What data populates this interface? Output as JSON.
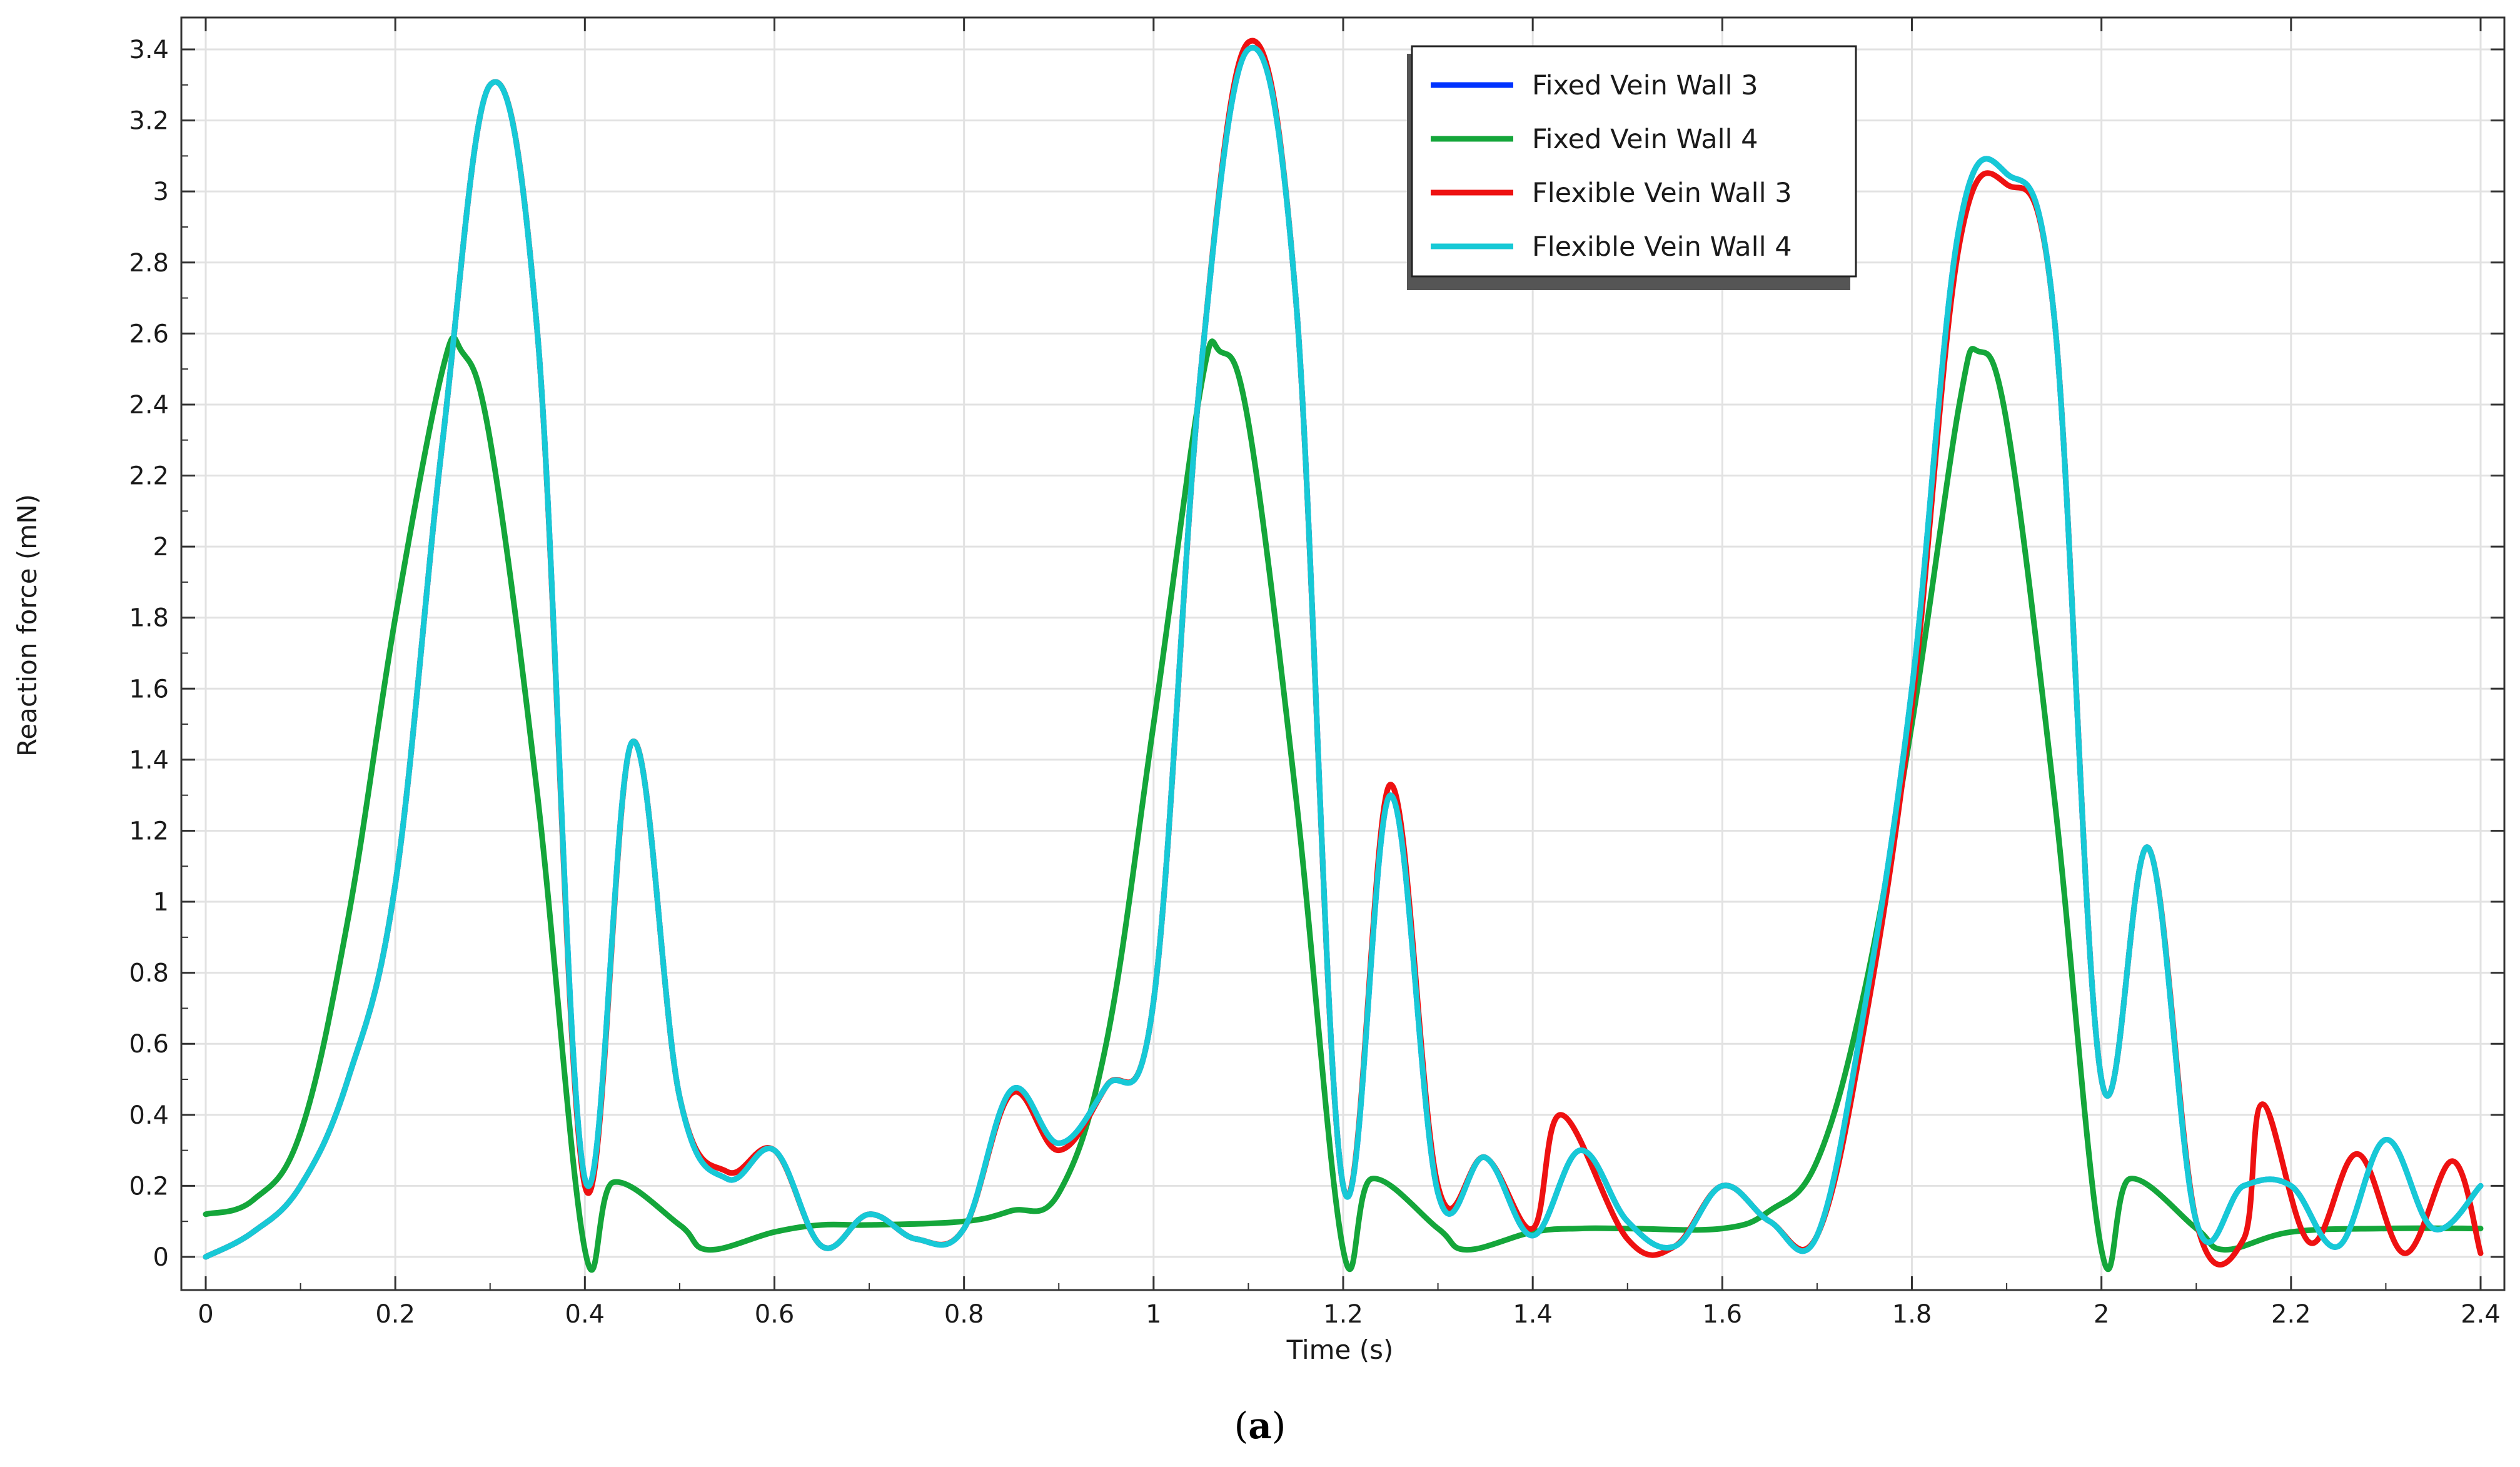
{
  "caption": {
    "open": "(",
    "letter": "a",
    "close": ")"
  },
  "chart_data": {
    "type": "line",
    "title": "",
    "xlabel": "Time (s)",
    "ylabel": "Reaction force (mN)",
    "xlim": [
      0,
      2.4
    ],
    "ylim": [
      0,
      3.4
    ],
    "x_ticks": [
      0,
      0.2,
      0.4,
      0.6,
      0.8,
      1,
      1.2,
      1.4,
      1.6,
      1.8,
      2,
      2.2,
      2.4
    ],
    "x_tick_labels": [
      "0",
      "0.2",
      "0.4",
      "0.6",
      "0.8",
      "1",
      "1.2",
      "1.4",
      "1.6",
      "1.8",
      "2",
      "2.2",
      "2.4"
    ],
    "y_ticks": [
      0,
      0.2,
      0.4,
      0.6,
      0.8,
      1,
      1.2,
      1.4,
      1.6,
      1.8,
      2,
      2.2,
      2.4,
      2.6,
      2.8,
      3,
      3.2,
      3.4
    ],
    "y_tick_labels": [
      "0",
      "0.2",
      "0.4",
      "0.6",
      "0.8",
      "1",
      "1.2",
      "1.4",
      "1.6",
      "1.8",
      "2",
      "2.2",
      "2.4",
      "2.6",
      "2.8",
      "3",
      "3.2",
      "3.4"
    ],
    "grid": true,
    "legend_position": "top-right",
    "series": [
      {
        "name": "Fixed Vein Wall 3",
        "color": "#0033ff",
        "points": [
          [
            0,
            0
          ],
          [
            0.05,
            0.07
          ],
          [
            0.1,
            0.2
          ],
          [
            0.15,
            0.5
          ],
          [
            0.2,
            1.05
          ],
          [
            0.25,
            2.3
          ],
          [
            0.3,
            3.3
          ],
          [
            0.35,
            2.6
          ],
          [
            0.4,
            0.22
          ],
          [
            0.45,
            1.45
          ],
          [
            0.5,
            0.45
          ],
          [
            0.55,
            0.22
          ],
          [
            0.6,
            0.3
          ],
          [
            0.65,
            0.03
          ],
          [
            0.7,
            0.12
          ],
          [
            0.75,
            0.05
          ],
          [
            0.8,
            0.08
          ],
          [
            0.85,
            0.47
          ],
          [
            0.9,
            0.32
          ],
          [
            0.95,
            0.48
          ],
          [
            1,
            0.72
          ],
          [
            1.05,
            2.5
          ],
          [
            1.1,
            3.4
          ],
          [
            1.15,
            2.7
          ],
          [
            1.2,
            0.2
          ],
          [
            1.25,
            1.3
          ],
          [
            1.3,
            0.18
          ],
          [
            1.35,
            0.28
          ],
          [
            1.4,
            0.06
          ],
          [
            1.45,
            0.3
          ],
          [
            1.5,
            0.1
          ],
          [
            1.55,
            0.03
          ],
          [
            1.6,
            0.2
          ],
          [
            1.65,
            0.1
          ],
          [
            1.7,
            0.06
          ],
          [
            1.75,
            0.7
          ],
          [
            1.8,
            1.6
          ],
          [
            1.85,
            2.9
          ],
          [
            1.9,
            3.05
          ],
          [
            1.95,
            2.65
          ],
          [
            2,
            0.5
          ],
          [
            2.05,
            1.15
          ],
          [
            2.1,
            0.1
          ],
          [
            2.15,
            0.2
          ],
          [
            2.2,
            0.2
          ],
          [
            2.25,
            0.03
          ],
          [
            2.3,
            0.33
          ],
          [
            2.35,
            0.08
          ],
          [
            2.4,
            0.2
          ]
        ]
      },
      {
        "name": "Fixed Vein Wall 4",
        "color": "#14a63a",
        "points": [
          [
            0,
            0.12
          ],
          [
            0.05,
            0.16
          ],
          [
            0.1,
            0.35
          ],
          [
            0.15,
            0.95
          ],
          [
            0.2,
            1.8
          ],
          [
            0.25,
            2.5
          ],
          [
            0.27,
            2.55
          ],
          [
            0.3,
            2.3
          ],
          [
            0.35,
            1.3
          ],
          [
            0.4,
            0.02
          ],
          [
            0.43,
            0.21
          ],
          [
            0.5,
            0.09
          ],
          [
            0.53,
            0.02
          ],
          [
            0.6,
            0.07
          ],
          [
            0.65,
            0.09
          ],
          [
            0.7,
            0.09
          ],
          [
            0.8,
            0.1
          ],
          [
            0.85,
            0.13
          ],
          [
            0.9,
            0.18
          ],
          [
            0.95,
            0.6
          ],
          [
            1,
            1.5
          ],
          [
            1.05,
            2.45
          ],
          [
            1.07,
            2.55
          ],
          [
            1.1,
            2.35
          ],
          [
            1.15,
            1.3
          ],
          [
            1.2,
            0.02
          ],
          [
            1.23,
            0.22
          ],
          [
            1.3,
            0.08
          ],
          [
            1.33,
            0.02
          ],
          [
            1.4,
            0.07
          ],
          [
            1.45,
            0.08
          ],
          [
            1.5,
            0.08
          ],
          [
            1.6,
            0.08
          ],
          [
            1.65,
            0.13
          ],
          [
            1.7,
            0.27
          ],
          [
            1.75,
            0.75
          ],
          [
            1.8,
            1.5
          ],
          [
            1.85,
            2.4
          ],
          [
            1.87,
            2.55
          ],
          [
            1.9,
            2.35
          ],
          [
            1.95,
            1.3
          ],
          [
            2,
            0.02
          ],
          [
            2.03,
            0.22
          ],
          [
            2.1,
            0.08
          ],
          [
            2.13,
            0.02
          ],
          [
            2.2,
            0.07
          ],
          [
            2.3,
            0.08
          ],
          [
            2.4,
            0.08
          ]
        ]
      },
      {
        "name": "Flexible Vein Wall 3",
        "color": "#ee1111",
        "points": [
          [
            0,
            0
          ],
          [
            0.05,
            0.07
          ],
          [
            0.1,
            0.2
          ],
          [
            0.15,
            0.5
          ],
          [
            0.2,
            1.05
          ],
          [
            0.25,
            2.3
          ],
          [
            0.3,
            3.3
          ],
          [
            0.35,
            2.6
          ],
          [
            0.4,
            0.2
          ],
          [
            0.45,
            1.45
          ],
          [
            0.5,
            0.45
          ],
          [
            0.55,
            0.24
          ],
          [
            0.6,
            0.3
          ],
          [
            0.65,
            0.03
          ],
          [
            0.7,
            0.12
          ],
          [
            0.75,
            0.05
          ],
          [
            0.8,
            0.08
          ],
          [
            0.85,
            0.46
          ],
          [
            0.9,
            0.3
          ],
          [
            0.95,
            0.48
          ],
          [
            1,
            0.72
          ],
          [
            1.05,
            2.5
          ],
          [
            1.1,
            3.42
          ],
          [
            1.15,
            2.7
          ],
          [
            1.2,
            0.2
          ],
          [
            1.25,
            1.33
          ],
          [
            1.3,
            0.2
          ],
          [
            1.35,
            0.28
          ],
          [
            1.4,
            0.08
          ],
          [
            1.43,
            0.4
          ],
          [
            1.5,
            0.05
          ],
          [
            1.55,
            0.03
          ],
          [
            1.6,
            0.2
          ],
          [
            1.65,
            0.1
          ],
          [
            1.7,
            0.06
          ],
          [
            1.75,
            0.65
          ],
          [
            1.8,
            1.55
          ],
          [
            1.85,
            2.85
          ],
          [
            1.9,
            3.02
          ],
          [
            1.95,
            2.65
          ],
          [
            2,
            0.5
          ],
          [
            2.05,
            1.15
          ],
          [
            2.1,
            0.1
          ],
          [
            2.15,
            0.05
          ],
          [
            2.17,
            0.43
          ],
          [
            2.22,
            0.04
          ],
          [
            2.27,
            0.29
          ],
          [
            2.32,
            0.01
          ],
          [
            2.37,
            0.27
          ],
          [
            2.4,
            0.01
          ]
        ]
      },
      {
        "name": "Flexible Vein Wall 4",
        "color": "#17c9d6",
        "points": [
          [
            0,
            0
          ],
          [
            0.05,
            0.07
          ],
          [
            0.1,
            0.2
          ],
          [
            0.15,
            0.5
          ],
          [
            0.2,
            1.05
          ],
          [
            0.25,
            2.3
          ],
          [
            0.3,
            3.3
          ],
          [
            0.35,
            2.6
          ],
          [
            0.4,
            0.22
          ],
          [
            0.45,
            1.45
          ],
          [
            0.5,
            0.45
          ],
          [
            0.55,
            0.22
          ],
          [
            0.6,
            0.3
          ],
          [
            0.65,
            0.03
          ],
          [
            0.7,
            0.12
          ],
          [
            0.75,
            0.05
          ],
          [
            0.8,
            0.08
          ],
          [
            0.85,
            0.47
          ],
          [
            0.9,
            0.32
          ],
          [
            0.95,
            0.48
          ],
          [
            1,
            0.72
          ],
          [
            1.05,
            2.5
          ],
          [
            1.1,
            3.4
          ],
          [
            1.15,
            2.7
          ],
          [
            1.2,
            0.2
          ],
          [
            1.25,
            1.3
          ],
          [
            1.3,
            0.18
          ],
          [
            1.35,
            0.28
          ],
          [
            1.4,
            0.06
          ],
          [
            1.45,
            0.3
          ],
          [
            1.5,
            0.1
          ],
          [
            1.55,
            0.03
          ],
          [
            1.6,
            0.2
          ],
          [
            1.65,
            0.1
          ],
          [
            1.7,
            0.06
          ],
          [
            1.75,
            0.7
          ],
          [
            1.8,
            1.6
          ],
          [
            1.85,
            2.9
          ],
          [
            1.9,
            3.05
          ],
          [
            1.95,
            2.65
          ],
          [
            2,
            0.5
          ],
          [
            2.05,
            1.15
          ],
          [
            2.1,
            0.1
          ],
          [
            2.15,
            0.2
          ],
          [
            2.2,
            0.2
          ],
          [
            2.25,
            0.03
          ],
          [
            2.3,
            0.33
          ],
          [
            2.35,
            0.08
          ],
          [
            2.4,
            0.2
          ]
        ]
      }
    ]
  }
}
